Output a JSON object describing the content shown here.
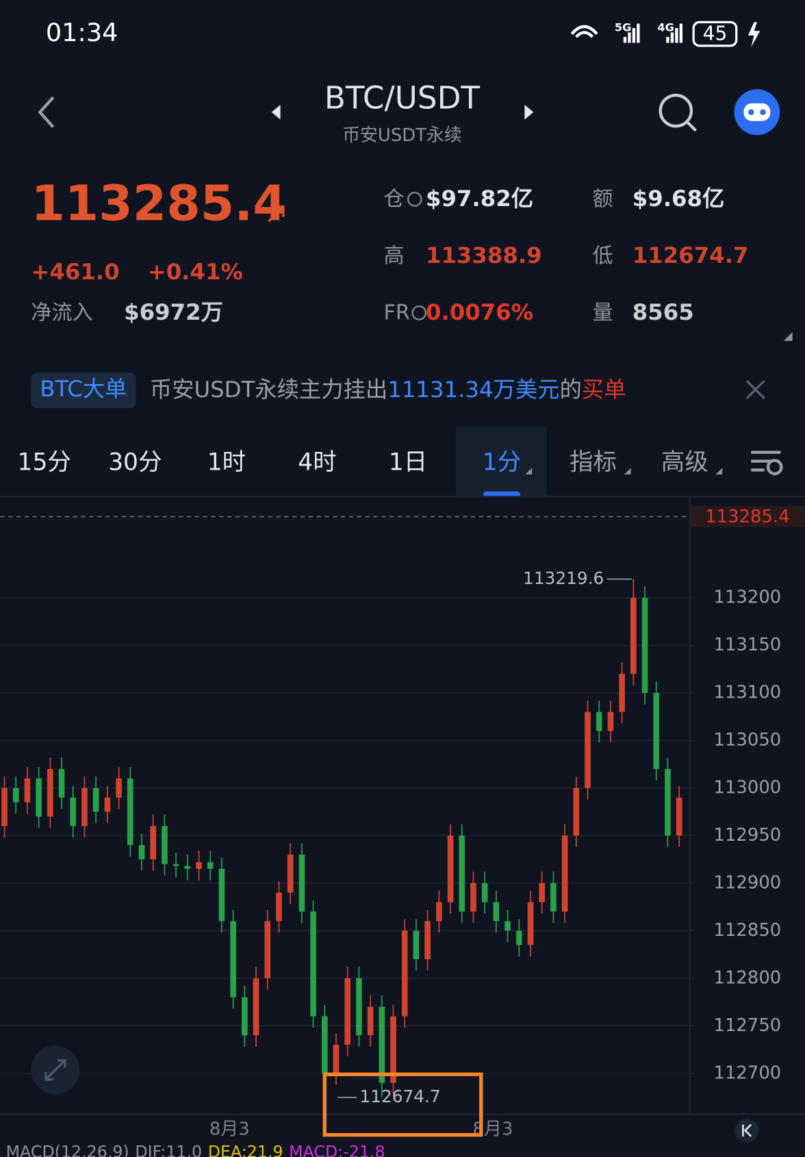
{
  "status_bar": {
    "time": "01:34",
    "network_1": "5G",
    "network_2": "4G",
    "battery": "45"
  },
  "header": {
    "title": "BTC/USDT",
    "subtitle": "币安USDT永续"
  },
  "ticker": {
    "price": "113285.4",
    "change": "+461.0",
    "change_pct": "+0.41%",
    "net_inflow_label": "净流入",
    "net_inflow": "$6972万",
    "stats": [
      {
        "label": "仓",
        "value": "$97.82亿"
      },
      {
        "label": "额",
        "value": "$9.68亿"
      },
      {
        "label": "高",
        "value": "113388.9"
      },
      {
        "label": "低",
        "value": "112674.7"
      },
      {
        "label": "FR",
        "value": "0.0076%"
      },
      {
        "label": "量",
        "value": "8565"
      }
    ]
  },
  "banner": {
    "tag": "BTC大单",
    "text": "币安USDT永续主力挂出",
    "amount": "11131.34万美元",
    "joiner": "的",
    "side": "买单"
  },
  "tabs": [
    "15分",
    "30分",
    "1时",
    "4时",
    "1日",
    "1分",
    "指标",
    "高级"
  ],
  "chart_data": {
    "type": "candlestick",
    "up_color": "#d3442f",
    "down_color": "#2aa14a",
    "ylim": [
      112657,
      113301
    ],
    "yticks": [
      112700,
      112750,
      112800,
      112850,
      112900,
      112950,
      113000,
      113050,
      113100,
      113150,
      113200
    ],
    "grid": true,
    "last_price": 113285.4,
    "max_label": 113219.6,
    "min_label": 112674.7,
    "x_labels": [
      "8月3",
      "8月3"
    ],
    "ohlc": [
      [
        112960,
        113012,
        112948,
        113000
      ],
      [
        113000,
        113012,
        112973,
        112985
      ],
      [
        112985,
        113022,
        112973,
        113010
      ],
      [
        113010,
        113022,
        112958,
        112970
      ],
      [
        112970,
        113032,
        112958,
        113020
      ],
      [
        113020,
        113032,
        112978,
        112990
      ],
      [
        112990,
        113002,
        112948,
        112960
      ],
      [
        112960,
        113012,
        112948,
        113000
      ],
      [
        113000,
        113012,
        112963,
        112975
      ],
      [
        112975,
        113002,
        112963,
        112990
      ],
      [
        112990,
        113022,
        112978,
        113010
      ],
      [
        113010,
        113022,
        112928,
        112940
      ],
      [
        112940,
        112952,
        112913,
        112925
      ],
      [
        112925,
        112972,
        112913,
        112960
      ],
      [
        112960,
        112972,
        112908,
        112920
      ],
      [
        112920,
        112932,
        112906,
        112918
      ],
      [
        112918,
        112930,
        112903,
        112915
      ],
      [
        112915,
        112934,
        112903,
        112922
      ],
      [
        112922,
        112934,
        112903,
        112915
      ],
      [
        112915,
        112927,
        112848,
        112860
      ],
      [
        112860,
        112872,
        112768,
        112780
      ],
      [
        112780,
        112792,
        112728,
        112740
      ],
      [
        112740,
        112812,
        112728,
        112800
      ],
      [
        112800,
        112872,
        112788,
        112860
      ],
      [
        112860,
        112902,
        112848,
        112890
      ],
      [
        112890,
        112942,
        112878,
        112930
      ],
      [
        112930,
        112942,
        112858,
        112870
      ],
      [
        112870,
        112882,
        112748,
        112760
      ],
      [
        112760,
        112772,
        112688,
        112700
      ],
      [
        112700,
        112742,
        112688,
        112730
      ],
      [
        112730,
        112812,
        112718,
        112800
      ],
      [
        112800,
        112812,
        112728,
        112740
      ],
      [
        112740,
        112782,
        112728,
        112770
      ],
      [
        112770,
        112782,
        112674.7,
        112690
      ],
      [
        112690,
        112772,
        112678,
        112760
      ],
      [
        112760,
        112862,
        112748,
        112850
      ],
      [
        112850,
        112862,
        112808,
        112820
      ],
      [
        112820,
        112872,
        112808,
        112860
      ],
      [
        112860,
        112892,
        112848,
        112880
      ],
      [
        112880,
        112962,
        112868,
        112950
      ],
      [
        112950,
        112962,
        112858,
        112870
      ],
      [
        112870,
        112912,
        112858,
        112900
      ],
      [
        112900,
        112912,
        112868,
        112880
      ],
      [
        112880,
        112892,
        112848,
        112860
      ],
      [
        112860,
        112872,
        112838,
        112850
      ],
      [
        112850,
        112862,
        112823,
        112835
      ],
      [
        112835,
        112892,
        112823,
        112880
      ],
      [
        112880,
        112912,
        112868,
        112900
      ],
      [
        112900,
        112912,
        112858,
        112870
      ],
      [
        112870,
        112962,
        112858,
        112950
      ],
      [
        112950,
        113012,
        112938,
        113000
      ],
      [
        113000,
        113092,
        112988,
        113080
      ],
      [
        113080,
        113092,
        113048,
        113060
      ],
      [
        113060,
        113092,
        113048,
        113080
      ],
      [
        113080,
        113132,
        113068,
        113120
      ],
      [
        113120,
        113219.6,
        113108,
        113200
      ],
      [
        113200,
        113212,
        113088,
        113100
      ],
      [
        113100,
        113112,
        113008,
        113020
      ],
      [
        113020,
        113032,
        112938,
        112950
      ],
      [
        112950,
        113002,
        112938,
        112990
      ]
    ]
  },
  "indicator": {
    "name": "MACD(12,26,9)",
    "dif": "DIF:11.0",
    "dea": "DEA:21.9",
    "macd": "MACD:-21.8"
  }
}
